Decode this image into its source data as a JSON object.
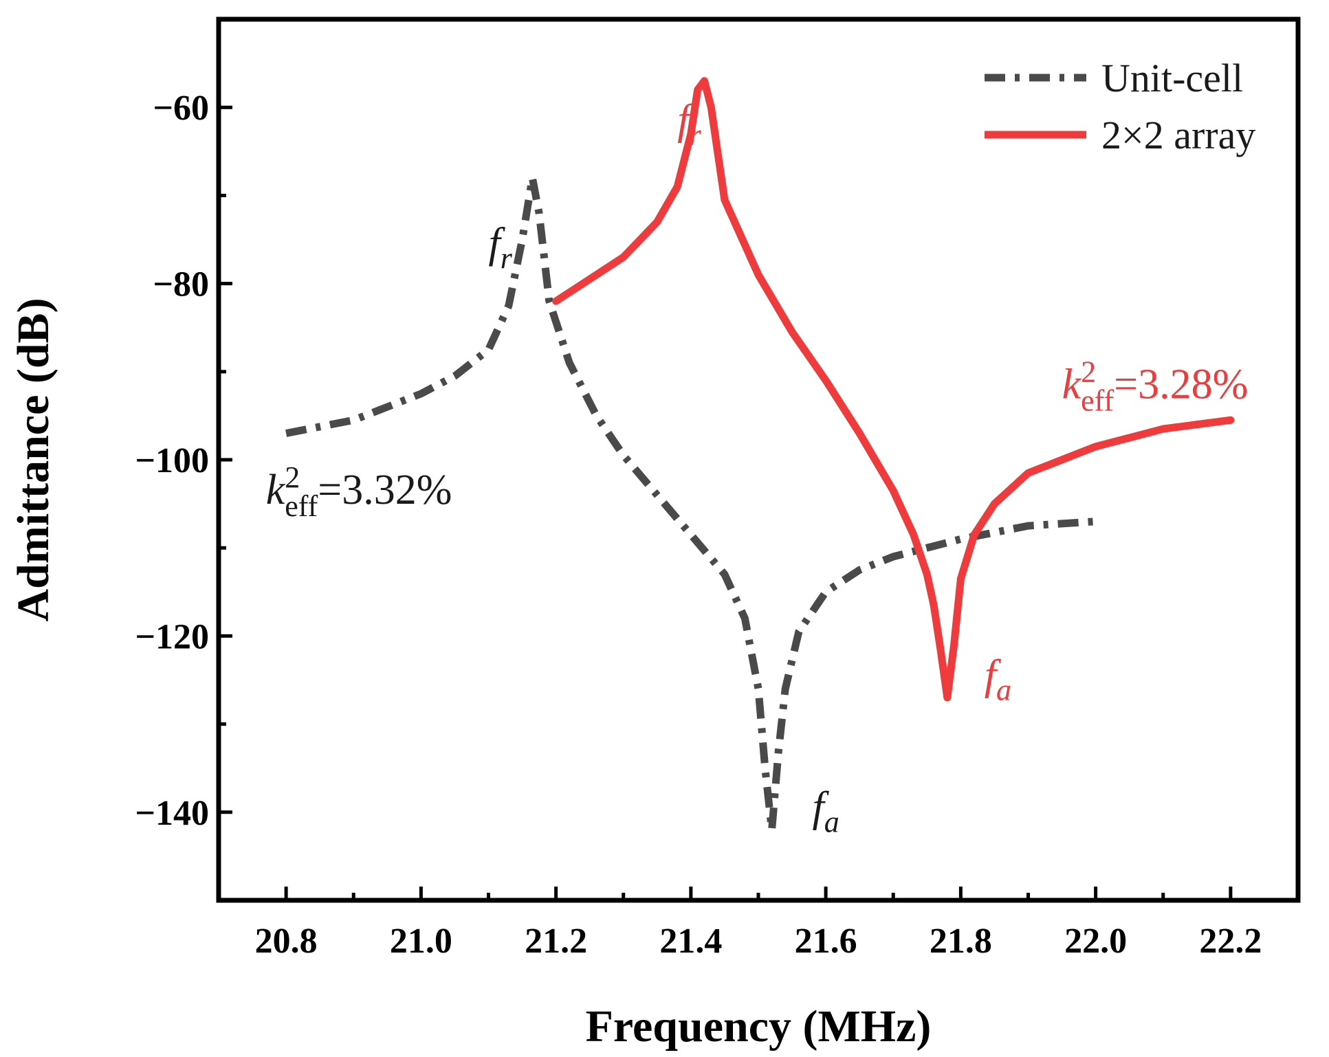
{
  "chart_data": {
    "type": "line",
    "title": "",
    "xlabel": "Frequency (MHz)",
    "ylabel": "Admittance (dB)",
    "xlim": [
      20.7,
      22.3
    ],
    "ylim": [
      -150,
      -50
    ],
    "xticks": [
      20.8,
      21.0,
      21.2,
      21.4,
      21.6,
      21.8,
      22.0,
      22.2
    ],
    "xtick_labels": [
      "20.8",
      "21.0",
      "21.2",
      "21.4",
      "21.6",
      "21.8",
      "22.0",
      "22.2"
    ],
    "yticks": [
      -60,
      -80,
      -100,
      -120,
      -140
    ],
    "ytick_labels": [
      "−60",
      "−80",
      "−100",
      "−120",
      "−140"
    ],
    "legend_position": "top-right",
    "series": [
      {
        "name": "Unit-cell",
        "style": "dash-dot",
        "color": "#4a4a4a",
        "x": [
          20.8,
          20.9,
          21.0,
          21.05,
          21.1,
          21.13,
          21.15,
          21.165,
          21.175,
          21.19,
          21.22,
          21.26,
          21.3,
          21.35,
          21.4,
          21.45,
          21.48,
          21.5,
          21.51,
          21.52,
          21.53,
          21.54,
          21.56,
          21.6,
          21.65,
          21.7,
          21.8,
          21.9,
          22.0
        ],
        "y": [
          -97,
          -95.5,
          -92.5,
          -90.5,
          -87.5,
          -82.5,
          -75,
          -68,
          -72,
          -82,
          -89,
          -95,
          -99.5,
          -104,
          -108.5,
          -113,
          -118,
          -126,
          -135,
          -142,
          -133,
          -126,
          -119.5,
          -115,
          -112.5,
          -111,
          -109,
          -107.5,
          -107
        ]
      },
      {
        "name": "2×2 array",
        "style": "solid",
        "color": "#ef3b3b",
        "x": [
          21.2,
          21.25,
          21.3,
          21.35,
          21.38,
          21.4,
          21.41,
          21.42,
          21.43,
          21.45,
          21.5,
          21.55,
          21.6,
          21.65,
          21.7,
          21.73,
          21.75,
          21.76,
          21.77,
          21.78,
          21.79,
          21.8,
          21.82,
          21.85,
          21.9,
          22.0,
          22.1,
          22.2
        ],
        "y": [
          -82,
          -79.5,
          -77,
          -73,
          -69,
          -63,
          -58,
          -57,
          -60,
          -70.5,
          -79,
          -85.5,
          -91,
          -97,
          -103.5,
          -108.5,
          -113,
          -116.5,
          -121.5,
          -127,
          -121,
          -113.5,
          -108.5,
          -105,
          -101.5,
          -98.5,
          -96.5,
          -95.5
        ]
      }
    ],
    "annotations": [
      {
        "text": "f",
        "sub": "r",
        "color": "#ef3b3b",
        "x": 21.38,
        "y": -63
      },
      {
        "text": "f",
        "sub": "r",
        "color": "#1a1a1a",
        "x": 21.1,
        "y": -77
      },
      {
        "text": "f",
        "sub": "a",
        "color": "#ef3b3b",
        "x": 21.835,
        "y": -126
      },
      {
        "text": "f",
        "sub": "a",
        "color": "#1a1a1a",
        "x": 21.58,
        "y": -141
      },
      {
        "text": "k",
        "sup": "2",
        "sub": "eff",
        "value": "=3.28%",
        "color": "#ef3b3b",
        "x": 21.95,
        "y": -93
      },
      {
        "text": "k",
        "sup": "2",
        "sub": "eff",
        "value": "=3.32%",
        "color": "#1a1a1a",
        "x": 20.77,
        "y": -105
      }
    ]
  }
}
